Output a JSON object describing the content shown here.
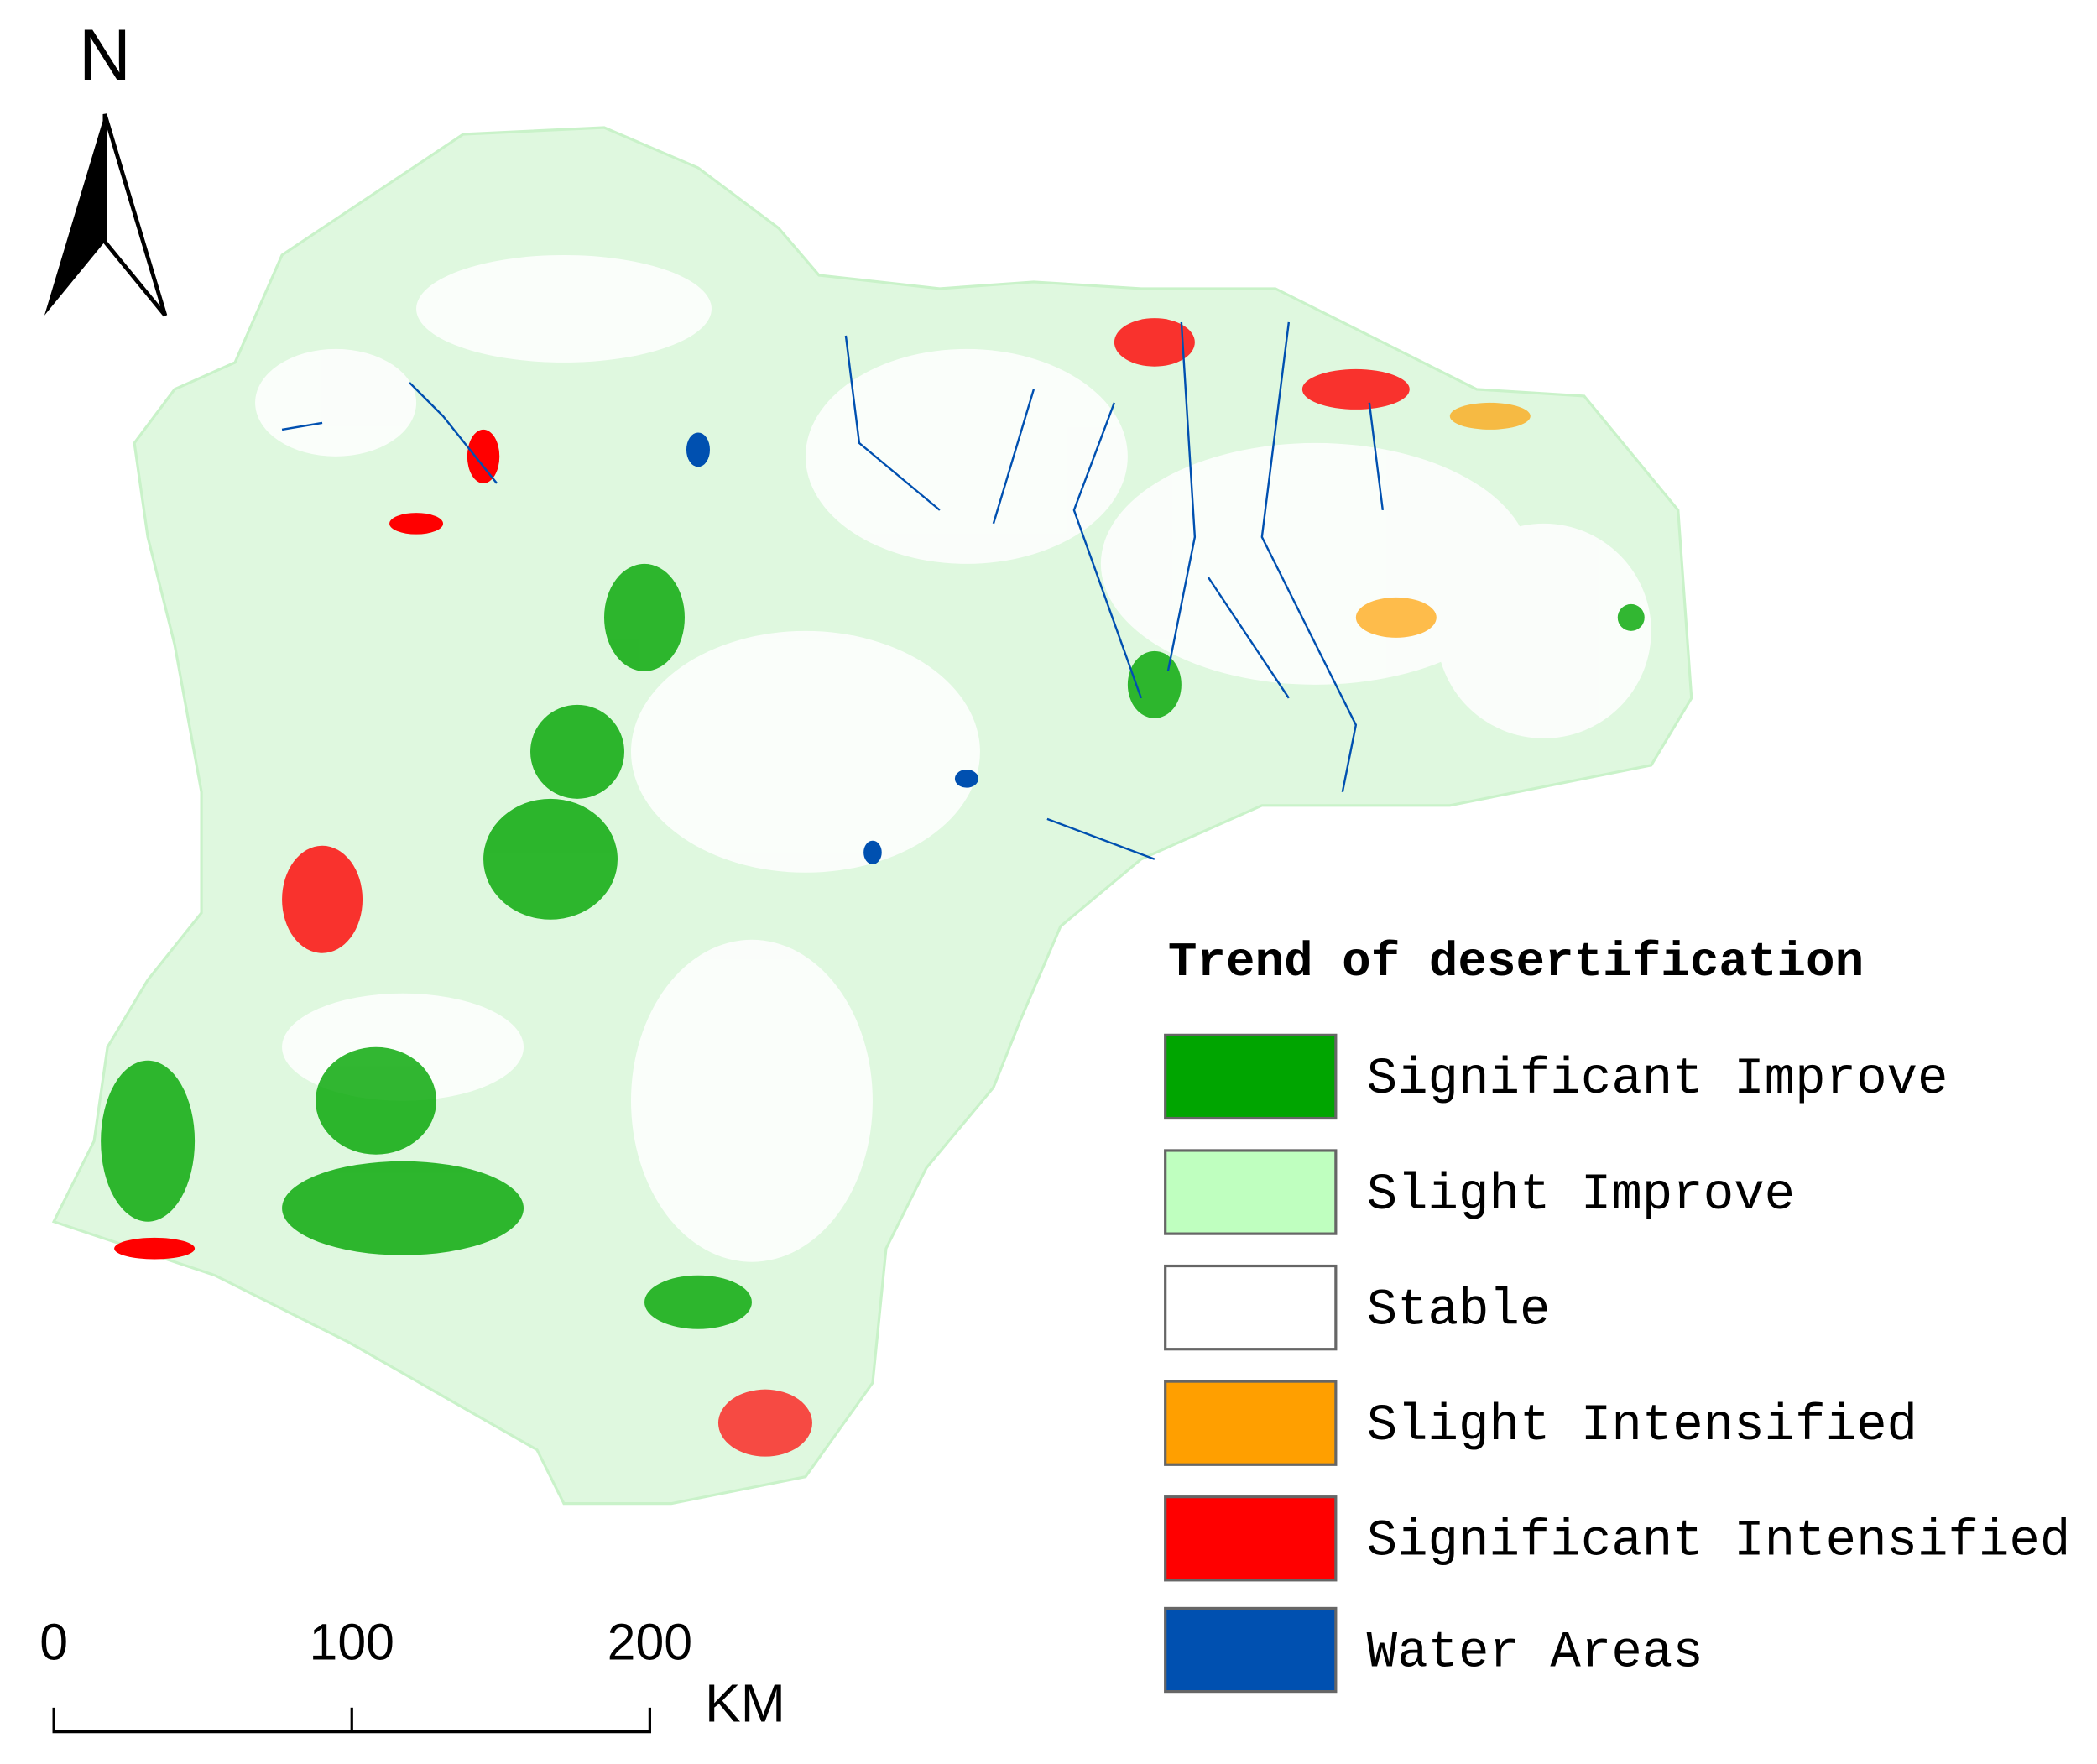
{
  "north_label": "N",
  "scale_bar": {
    "labels": [
      "0",
      "100",
      "200"
    ],
    "unit": "KM"
  },
  "legend": {
    "title": "Trend of desertification",
    "items": [
      {
        "label": "Significant Improve",
        "color": "#00a500"
      },
      {
        "label": "Slight Improve",
        "color": "#bfffbf"
      },
      {
        "label": "Stable",
        "color": "#ffffff"
      },
      {
        "label": "Slight Intensified",
        "color": "#ff9f00"
      },
      {
        "label": "Significant Intensified",
        "color": "#ff0000"
      },
      {
        "label": "Water Areas",
        "color": "#0050b0"
      }
    ]
  }
}
